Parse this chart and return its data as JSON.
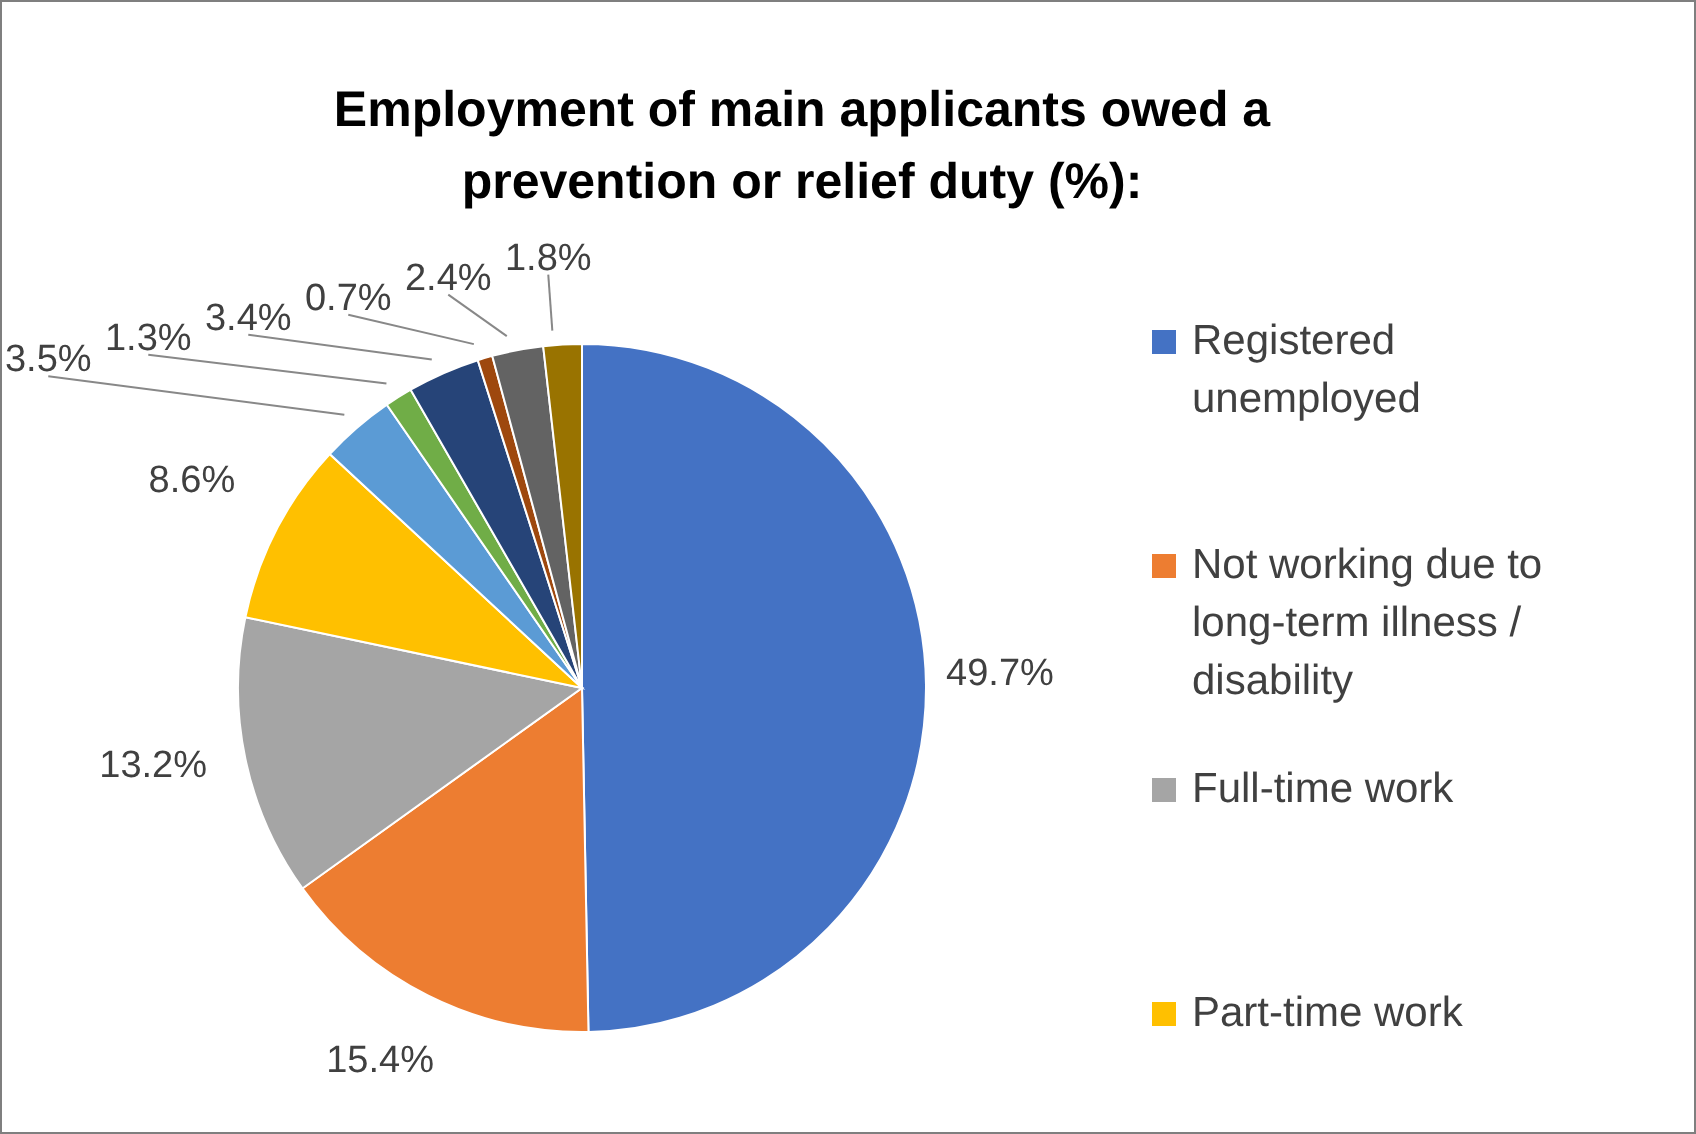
{
  "chart_data": {
    "type": "pie",
    "title": "Employment of main applicants owed a prevention or relief duty (%):",
    "categories": [
      "Registered unemployed",
      "Not working due to long-term illness / disability",
      "Full-time work",
      "Part-time work",
      null,
      null,
      null,
      null,
      null,
      null
    ],
    "values": [
      49.7,
      15.4,
      13.2,
      8.6,
      3.5,
      1.3,
      3.4,
      0.7,
      2.4,
      1.8
    ],
    "value_labels": [
      "49.7%",
      "15.4%",
      "13.2%",
      "8.6%",
      "3.5%",
      "1.3%",
      "3.4%",
      "0.7%",
      "2.4%",
      "1.8%"
    ],
    "colors": [
      "#4472c4",
      "#ed7d31",
      "#a5a5a5",
      "#ffc000",
      "#5b9bd5",
      "#70ad47",
      "#264478",
      "#9e480e",
      "#636363",
      "#997300"
    ],
    "legend": "right"
  }
}
